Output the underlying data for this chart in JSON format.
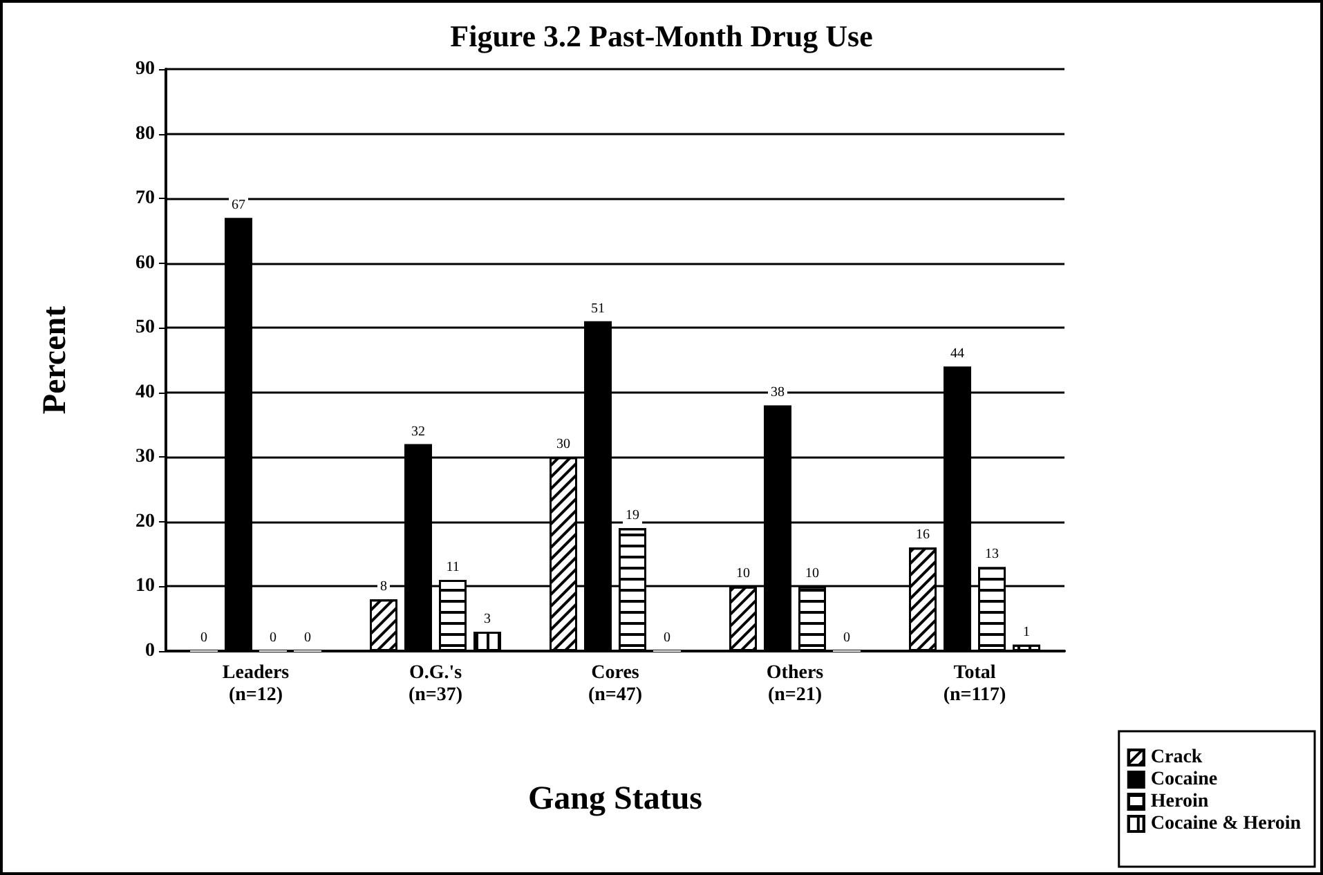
{
  "chart_data": {
    "type": "bar",
    "title": "Figure 3.2 Past-Month Drug Use",
    "xlabel": "Gang Status",
    "ylabel": "Percent",
    "categories": [
      "Leaders\n(n=12)",
      "O.G.'s\n(n=37)",
      "Cores\n(n=47)",
      "Others\n(n=21)",
      "Total\n(n=117)"
    ],
    "series": [
      {
        "name": "Crack",
        "color": "#ffffff",
        "values": [
          0,
          8,
          30,
          10,
          16
        ]
      },
      {
        "name": "Cocaine",
        "color": "#000000",
        "values": [
          67,
          32,
          51,
          38,
          44
        ]
      },
      {
        "name": "Heroin",
        "color": "#ffffff",
        "values": [
          0,
          11,
          19,
          10,
          13
        ]
      },
      {
        "name": "Cocaine & Heroin",
        "color": "#ffffff",
        "values": [
          0,
          3,
          0,
          0,
          1
        ]
      }
    ],
    "ylim": [
      0,
      90
    ],
    "yticks": [
      0,
      10,
      20,
      30,
      40,
      50,
      60,
      70,
      80,
      90
    ],
    "grid": "y",
    "legend": "bottom right",
    "data_labels": true
  }
}
